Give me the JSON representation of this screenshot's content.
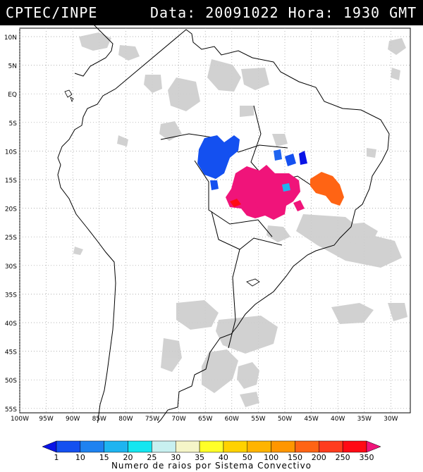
{
  "header": {
    "source": "CPTEC/INPE",
    "datetime": "Data: 20091022 Hora: 1930 GMT"
  },
  "lat_labels": [
    "10N",
    "5N",
    "EQ",
    "5S",
    "10S",
    "15S",
    "20S",
    "25S",
    "30S",
    "35S",
    "40S",
    "45S",
    "50S",
    "55S"
  ],
  "lon_labels": [
    "100W",
    "95W",
    "90W",
    "85W",
    "80W",
    "75W",
    "70W",
    "65W",
    "60W",
    "55W",
    "50W",
    "45W",
    "40W",
    "35W",
    "30W"
  ],
  "colorbar": {
    "title": "Numero de raios por Sistema Convectivo",
    "labels": [
      "1",
      "10",
      "15",
      "20",
      "25",
      "30",
      "35",
      "40",
      "50",
      "100",
      "150",
      "200",
      "250",
      "350"
    ],
    "colors": [
      "#0a14e6",
      "#1450f0",
      "#1e82f0",
      "#1eb4f0",
      "#14e6f0",
      "#c8f0f0",
      "#f5f5c8",
      "#ffff28",
      "#ffd200",
      "#ffb400",
      "#ff9600",
      "#ff6414",
      "#ff3c1e",
      "#ff0a14",
      "#f0147a"
    ]
  },
  "colors": {
    "background_cloud": "#c8c8c8",
    "land": "#ffffff",
    "border": "#000000"
  }
}
